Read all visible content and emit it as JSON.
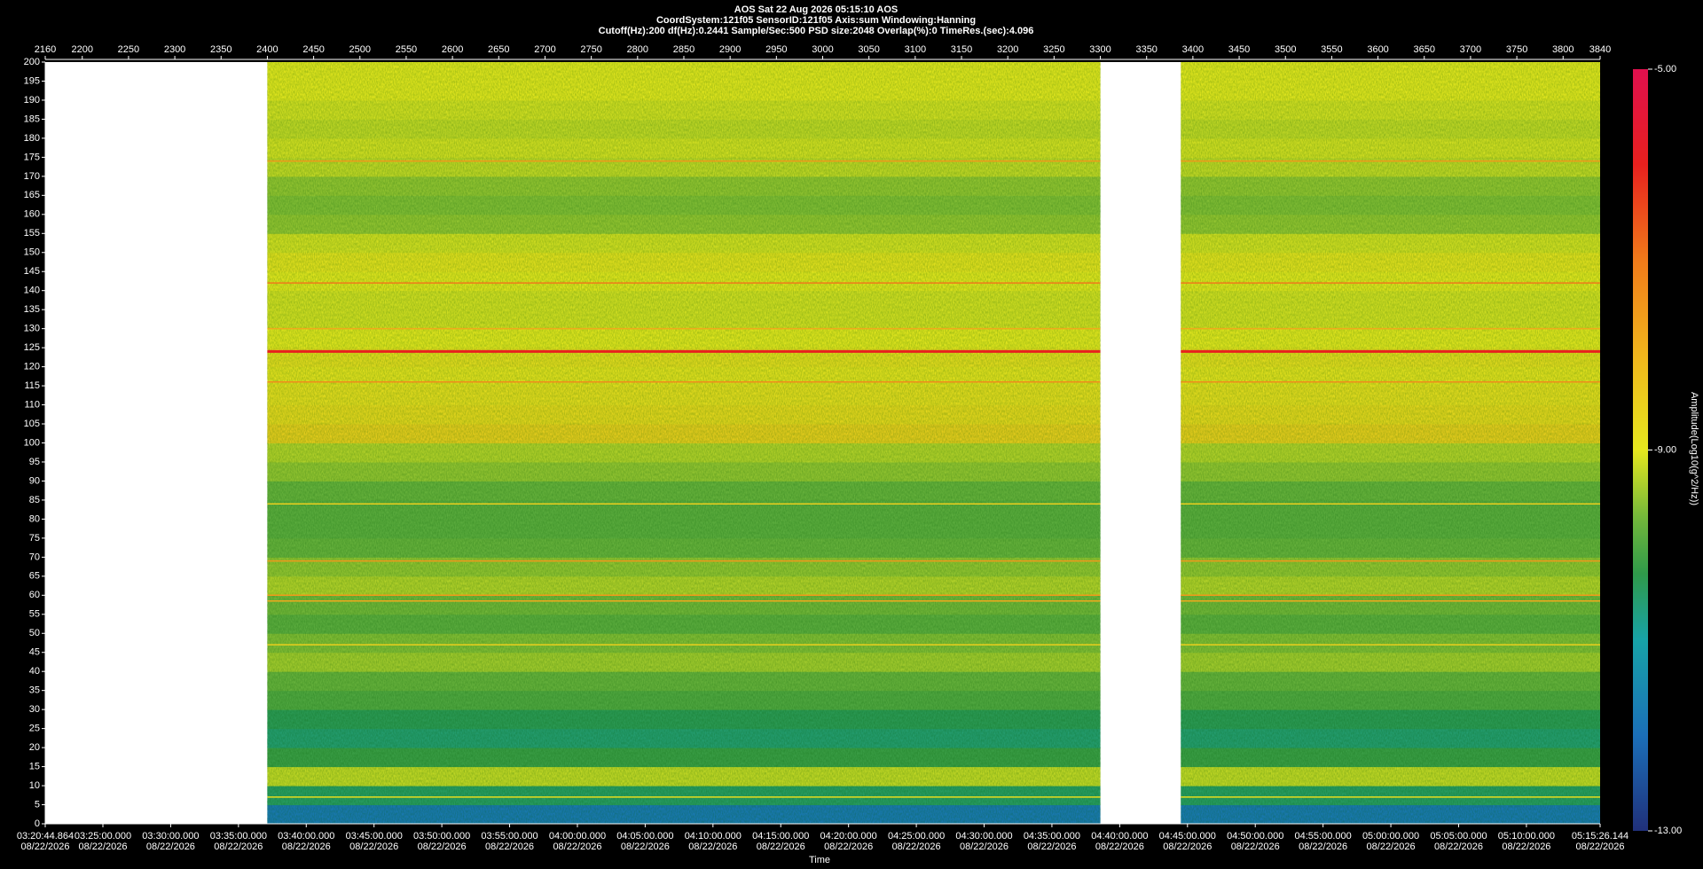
{
  "chart_data": {
    "type": "spectrogram",
    "title": "AOS  Sat 22 Aug 2026 05:15:10  AOS",
    "subtitle": [
      "CoordSystem:121f05   SensorID:121f05   Axis:sum    Windowing:Hanning",
      "Cutoff(Hz):200      df(Hz):0.2441      Sample/Sec:500      PSD size:2048      Overlap(%):0       TimeRes.(sec):4.096"
    ],
    "xlabel": "Time",
    "colorbar_label": "Amplitude(Log10(g^2/Hz))",
    "xlim": [
      2160,
      3840
    ],
    "xticks": [
      2160,
      2200,
      2250,
      2300,
      2350,
      2400,
      2450,
      2500,
      2550,
      2600,
      2650,
      2700,
      2750,
      2800,
      2850,
      2900,
      2950,
      3000,
      3050,
      3100,
      3150,
      3200,
      3250,
      3300,
      3350,
      3400,
      3450,
      3500,
      3550,
      3600,
      3650,
      3700,
      3750,
      3800,
      3840
    ],
    "time_ticks": [
      {
        "value": 2160,
        "label": "03:20:44.864",
        "date": "08/22/2026"
      },
      {
        "value": 2222.29,
        "label": "03:25:00.000",
        "date": "08/22/2026"
      },
      {
        "value": 2295.53,
        "label": "03:30:00.000",
        "date": "08/22/2026"
      },
      {
        "value": 2368.77,
        "label": "03:35:00.000",
        "date": "08/22/2026"
      },
      {
        "value": 2442.02,
        "label": "03:40:00.000",
        "date": "08/22/2026"
      },
      {
        "value": 2515.26,
        "label": "03:45:00.000",
        "date": "08/22/2026"
      },
      {
        "value": 2588.5,
        "label": "03:50:00.000",
        "date": "08/22/2026"
      },
      {
        "value": 2661.74,
        "label": "03:55:00.000",
        "date": "08/22/2026"
      },
      {
        "value": 2734.99,
        "label": "04:00:00.000",
        "date": "08/22/2026"
      },
      {
        "value": 2808.23,
        "label": "04:05:00.000",
        "date": "08/22/2026"
      },
      {
        "value": 2881.47,
        "label": "04:10:00.000",
        "date": "08/22/2026"
      },
      {
        "value": 2954.71,
        "label": "04:15:00.000",
        "date": "08/22/2026"
      },
      {
        "value": 3027.96,
        "label": "04:20:00.000",
        "date": "08/22/2026"
      },
      {
        "value": 3101.2,
        "label": "04:25:00.000",
        "date": "08/22/2026"
      },
      {
        "value": 3174.44,
        "label": "04:30:00.000",
        "date": "08/22/2026"
      },
      {
        "value": 3247.68,
        "label": "04:35:00.000",
        "date": "08/22/2026"
      },
      {
        "value": 3320.93,
        "label": "04:40:00.000",
        "date": "08/22/2026"
      },
      {
        "value": 3394.17,
        "label": "04:45:00.000",
        "date": "08/22/2026"
      },
      {
        "value": 3467.41,
        "label": "04:50:00.000",
        "date": "08/22/2026"
      },
      {
        "value": 3540.65,
        "label": "04:55:00.000",
        "date": "08/22/2026"
      },
      {
        "value": 3613.89,
        "label": "05:00:00.000",
        "date": "08/22/2026"
      },
      {
        "value": 3687.14,
        "label": "05:05:00.000",
        "date": "08/22/2026"
      },
      {
        "value": 3760.38,
        "label": "05:10:00.000",
        "date": "08/22/2026"
      },
      {
        "value": 3840,
        "label": "05:15:26.144",
        "date": "08/22/2026"
      }
    ],
    "ylim": [
      0,
      200
    ],
    "yticks": [
      0,
      5,
      10,
      15,
      20,
      25,
      30,
      35,
      40,
      45,
      50,
      55,
      60,
      65,
      70,
      75,
      80,
      85,
      90,
      95,
      100,
      105,
      110,
      115,
      120,
      125,
      130,
      135,
      140,
      145,
      150,
      155,
      160,
      165,
      170,
      175,
      180,
      185,
      190,
      195,
      200
    ],
    "segments": [
      [
        2400,
        3300
      ],
      [
        3387,
        3840
      ]
    ],
    "ybins": [
      0,
      5,
      10,
      15,
      20,
      25,
      30,
      35,
      40,
      45,
      50,
      55,
      60,
      65,
      70,
      75,
      80,
      85,
      90,
      95,
      100,
      105,
      110,
      115,
      120,
      125,
      130,
      135,
      140,
      145,
      150,
      155,
      160,
      165,
      170,
      175,
      180,
      185,
      190,
      195,
      200
    ],
    "values": [
      -11.8,
      -10.5,
      -9.2,
      -10.2,
      -10.6,
      -10.4,
      -10.0,
      -9.8,
      -9.4,
      -9.6,
      -9.9,
      -9.7,
      -9.3,
      -9.5,
      -9.8,
      -9.9,
      -9.9,
      -9.8,
      -9.5,
      -9.3,
      -8.5,
      -8.7,
      -8.8,
      -8.9,
      -8.8,
      -9.0,
      -9.1,
      -9.1,
      -9.0,
      -8.9,
      -9.1,
      -9.5,
      -9.6,
      -9.5,
      -9.2,
      -9.1,
      -9.2,
      -9.1,
      -9.0,
      -9.0
    ],
    "lines": {
      "y": [
        174,
        142,
        130,
        124,
        116,
        84,
        69,
        60,
        58.5,
        47,
        7
      ],
      "values": [
        -7.5,
        -7.0,
        -7.8,
        -6.0,
        -7.3,
        -8.5,
        -7.5,
        -7.5,
        -7.8,
        -8.5,
        -8.8
      ]
    },
    "clim": [
      -13,
      -5
    ],
    "cticks": [
      {
        "value": -5,
        "label": "-5.00"
      },
      {
        "value": -9,
        "label": "-9.00"
      },
      {
        "value": -13,
        "label": "-13.00"
      }
    ],
    "colormap": [
      [
        -13,
        "#20307a"
      ],
      [
        -12,
        "#1b6fb8"
      ],
      [
        -11,
        "#17a3a8"
      ],
      [
        -10.3,
        "#2f9a4a"
      ],
      [
        -9.7,
        "#74b83a"
      ],
      [
        -9,
        "#e6e81e"
      ],
      [
        -8,
        "#f0b51c"
      ],
      [
        -7,
        "#f07a1a"
      ],
      [
        -6,
        "#e8201e"
      ],
      [
        -5,
        "#e0104e"
      ]
    ]
  }
}
